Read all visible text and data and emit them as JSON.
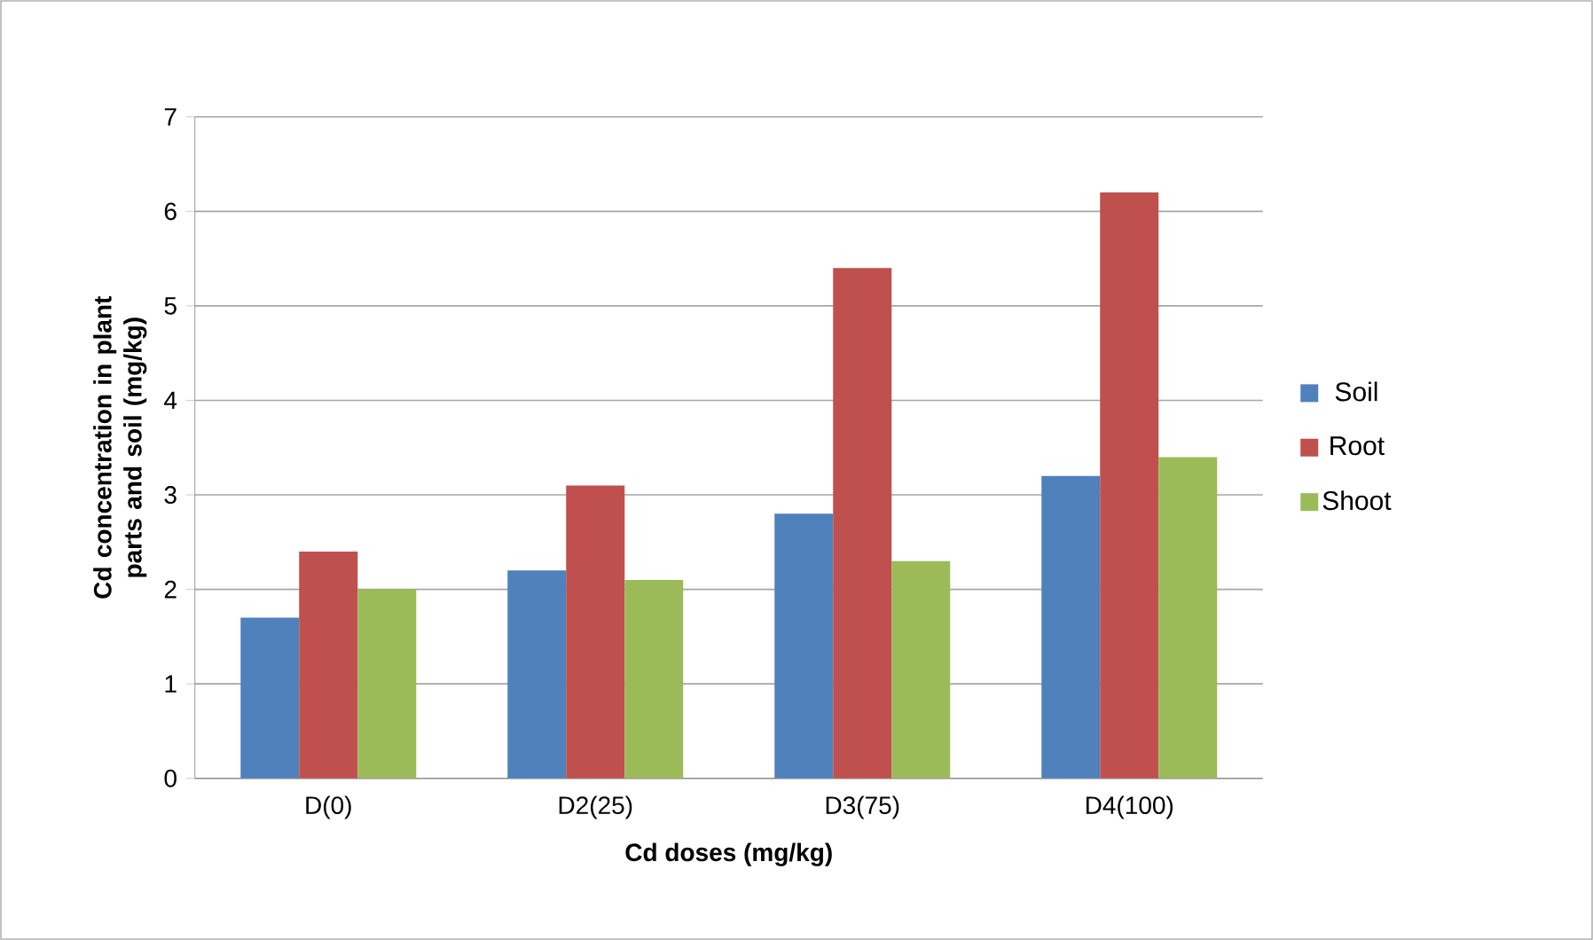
{
  "chart_data": {
    "type": "bar",
    "xlabel": "Cd doses (mg/kg)",
    "ylabel": "Cd concentration in plant parts and soil (mg/kg)",
    "categories": [
      "D(0)",
      "D2(25)",
      "D3(75)",
      "D4(100)"
    ],
    "series": [
      {
        "name": "Soil",
        "color": "#4f81bd",
        "values": [
          1.7,
          2.2,
          2.8,
          3.2
        ]
      },
      {
        "name": "Root",
        "color": "#c0504d",
        "values": [
          2.4,
          3.1,
          5.4,
          6.2
        ]
      },
      {
        "name": "Shoot",
        "color": "#9bbb59",
        "values": [
          2.0,
          2.1,
          2.3,
          3.4
        ]
      }
    ],
    "ylim": [
      0,
      7
    ],
    "yticks": [
      0,
      1,
      2,
      3,
      4,
      5,
      6,
      7
    ],
    "grid": "y",
    "legend": "right"
  }
}
